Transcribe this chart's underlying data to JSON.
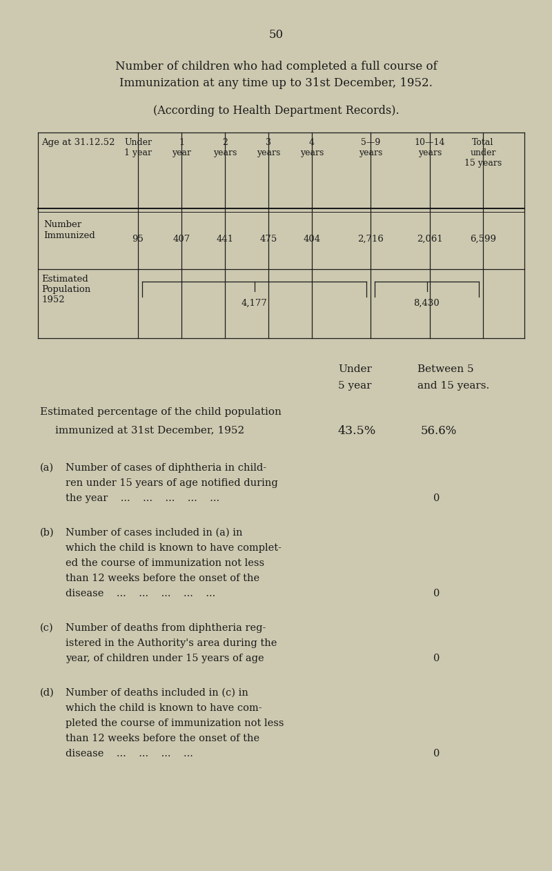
{
  "bg_color": "#cdc9b0",
  "text_color": "#1a1a1a",
  "page_number": "50",
  "title_line1": "Number of children who had completed a full course of",
  "title_line2": "Immunization at any time up to 31st December, 1952.",
  "subtitle": "(According to Health Department Records).",
  "table_headers": [
    "Under\n1 year",
    "1\nyear",
    "2\nyears",
    "3\nyears",
    "4\nyears",
    "5—9\nyears",
    "10—14\nyears",
    "Total\nunder\n15 years"
  ],
  "row_label_col": "Age at 31.12.52",
  "row1_label_line1": "Number",
  "row1_label_line2": "Immunized",
  "row1_values": [
    "95",
    "407",
    "441",
    "475",
    "404",
    "2,716",
    "2,061",
    "6,599"
  ],
  "row2_label": "Estimated\nPopulation\n1952",
  "row2_brace1_text": "4,177",
  "row2_brace2_text": "8,430",
  "under5_col1": "Under",
  "under5_col2": "5 year",
  "between_col1": "Between 5",
  "between_col2": "and 15 years.",
  "pct_line1": "Estimated percentage of the child population",
  "pct_line2": "immunized at 31st December, 1952",
  "pct_under5": "43.5%",
  "pct_between": "56.6%",
  "items": [
    {
      "label": "(a)",
      "lines": [
        "Number of cases of diphtheria in child-",
        "ren under 15 years of age notified during",
        "the year    ...    ...    ...    ...    ..."
      ],
      "value": "0",
      "value_line": 2
    },
    {
      "label": "(b)",
      "lines": [
        "Number of cases included in (a) in",
        "which the child is known to have complet-",
        "ed the course of immunization not less",
        "than 12 weeks before the onset of the",
        "disease    ...    ...    ...    ...    ..."
      ],
      "value": "0",
      "value_line": 4
    },
    {
      "label": "(c)",
      "lines": [
        "Number of deaths from diphtheria reg-",
        "istered in the Authority's area during the",
        "year, of children under 15 years of age"
      ],
      "value": "0",
      "value_line": 2
    },
    {
      "label": "(d)",
      "lines": [
        "Number of deaths included in (c) in",
        "which the child is known to have com-",
        "pleted the course of immunization not less",
        "than 12 weeks before the onset of the",
        "disease    ...    ...    ...    ..."
      ],
      "value": "0",
      "value_line": 4
    }
  ]
}
